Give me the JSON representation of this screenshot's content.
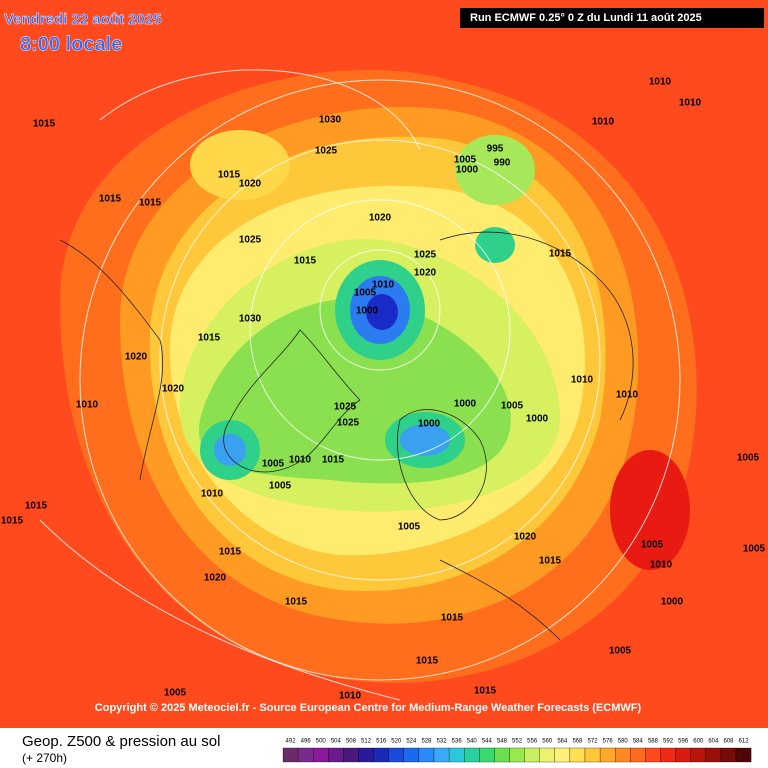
{
  "header": {
    "date": "Vendredi 22 août 2025",
    "time": "8:00 locale",
    "run": "Run ECMWF 0.25° 0 Z du Lundi 11 août 2025"
  },
  "copyright": "Copyright © 2025 Meteociel.fr - Source European Centre for Medium-Range Weather Forecasts (ECMWF)",
  "footer": {
    "title": "Geop. Z500 & pression au sol",
    "lead": "(+ 270h)"
  },
  "scale_labels": [
    492,
    496,
    500,
    504,
    508,
    512,
    516,
    520,
    524,
    528,
    532,
    536,
    540,
    544,
    548,
    552,
    556,
    560,
    564,
    568,
    572,
    576,
    580,
    584,
    588,
    592,
    596,
    600,
    604,
    608,
    612
  ],
  "pressure_labels": [
    1030,
    1025,
    1015,
    1020,
    1015,
    1015,
    1015,
    1020,
    1025,
    1015,
    1025,
    1020,
    1010,
    1005,
    1000,
    1030,
    1015,
    1020,
    1010,
    1020,
    1025,
    1025,
    1000,
    1000,
    1005,
    1000,
    1010,
    1015,
    995,
    990,
    1005,
    1000,
    1010,
    1010,
    1010,
    1010,
    1015,
    1005,
    1005,
    1010,
    1015,
    1015,
    1020,
    1015,
    1020,
    1015,
    1005,
    1015,
    1015,
    1010,
    1005,
    1015,
    1005,
    1000,
    1005,
    1005,
    1015,
    1010,
    1005,
    1010
  ]
}
